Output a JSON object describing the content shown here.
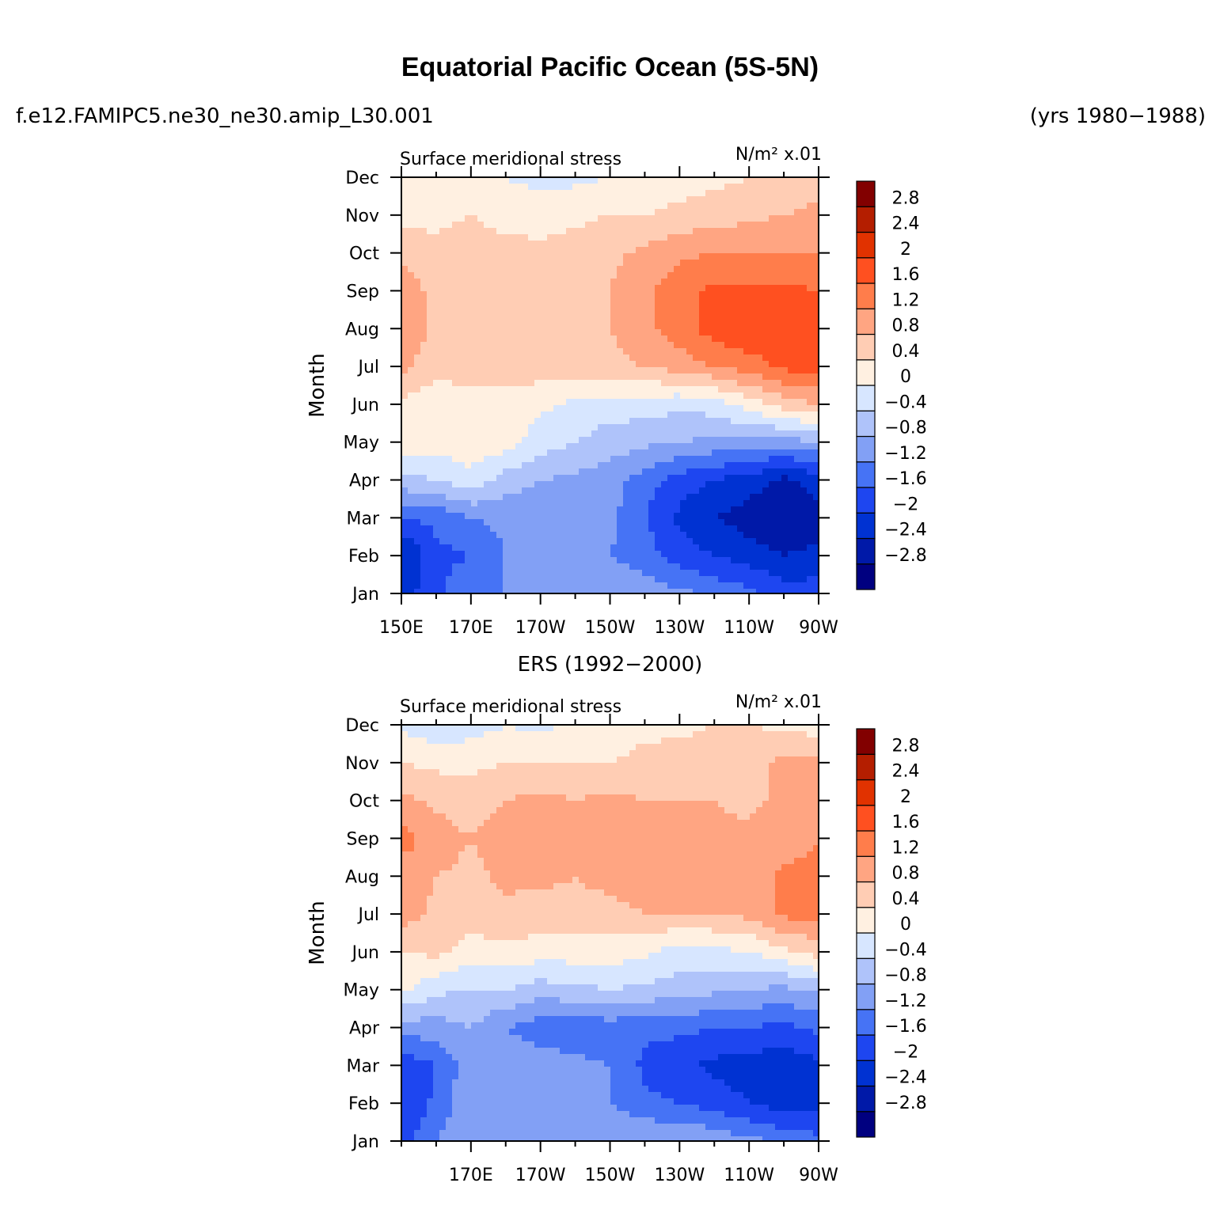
{
  "header": {
    "title": "Equatorial Pacific Ocean (5S-5N)",
    "case_name": "f.e12.FAMIPC5.ne30_ne30.amip_L30.001",
    "years": "(yrs 1980−1988)"
  },
  "colors": {
    "scale": [
      "#000080",
      "#0019a8",
      "#0032d2",
      "#1e46f0",
      "#4673f5",
      "#82a0f5",
      "#afc3fa",
      "#d7e6ff",
      "#fff0e1",
      "#ffcdb4",
      "#ffa582",
      "#ff7d4b",
      "#ff5020",
      "#e13200",
      "#b41e00",
      "#820000"
    ]
  },
  "chart_data": [
    {
      "type": "heatmap",
      "panel_title": "",
      "left_string": "Surface meridional stress",
      "right_string": "N/m² x.01",
      "xlabel": "",
      "ylabel": "Month",
      "xlim": [
        150,
        270
      ],
      "x_ticks": [
        150,
        170,
        190,
        210,
        230,
        250,
        270
      ],
      "x_tick_labels": [
        "150E",
        "170E",
        "170W",
        "150W",
        "130W",
        "110W",
        "90W"
      ],
      "y_tick_labels": [
        "Jan",
        "Feb",
        "Mar",
        "Apr",
        "May",
        "Jun",
        "Jul",
        "Aug",
        "Sep",
        "Oct",
        "Nov",
        "Dec"
      ],
      "levels": [
        -2.8,
        -2.4,
        -2,
        -1.6,
        -1.2,
        -0.8,
        -0.4,
        0,
        0.4,
        0.8,
        1.2,
        1.6,
        2,
        2.4,
        2.8
      ],
      "level_labels": [
        "−2.8",
        "−2.4",
        "−2",
        "−1.6",
        "−1.2",
        "−0.8",
        "−0.4",
        "0",
        "0.4",
        "0.8",
        "1.2",
        "1.6",
        "2",
        "2.4",
        "2.8"
      ],
      "z": [
        [
          -2.2,
          -1.7,
          -1.3,
          -1.2,
          -1.0,
          -0.9,
          -0.9,
          -1.0,
          -1.1,
          -1.3,
          -1.5,
          -1.8,
          -1.8
        ],
        [
          -2.5,
          -1.7,
          -1.6,
          -1.2,
          -1.1,
          -1.1,
          -1.2,
          -1.4,
          -1.8,
          -2.0,
          -2.2,
          -2.4,
          -2.3
        ],
        [
          -1.6,
          -1.5,
          -1.2,
          -1.1,
          -1.0,
          -1.0,
          -1.1,
          -1.6,
          -2.1,
          -2.4,
          -2.6,
          -2.8,
          -2.6
        ],
        [
          -0.5,
          -0.4,
          -0.1,
          -0.6,
          -0.8,
          -0.9,
          -1.0,
          -1.4,
          -1.8,
          -2.0,
          -2.2,
          -2.5,
          -2.2
        ],
        [
          0.2,
          0.2,
          0.2,
          0.2,
          -0.2,
          -0.4,
          -0.6,
          -0.7,
          -0.8,
          -0.9,
          -0.9,
          -1.0,
          -0.8
        ],
        [
          0.3,
          0.1,
          0.2,
          0.2,
          0.1,
          -0.1,
          -0.2,
          -0.2,
          -0.3,
          -0.2,
          0.2,
          0.6,
          0.8
        ],
        [
          0.9,
          0.6,
          0.6,
          0.7,
          0.6,
          0.6,
          0.7,
          0.8,
          1.0,
          1.2,
          1.4,
          1.7,
          1.8
        ],
        [
          1.1,
          0.7,
          0.7,
          0.7,
          0.7,
          0.7,
          0.8,
          1.1,
          1.4,
          1.8,
          2.0,
          1.9,
          1.8
        ],
        [
          1.0,
          0.7,
          0.7,
          0.6,
          0.6,
          0.7,
          0.8,
          1.1,
          1.5,
          1.7,
          1.7,
          1.7,
          1.6
        ],
        [
          0.7,
          0.5,
          0.6,
          0.6,
          0.5,
          0.6,
          0.7,
          0.9,
          1.1,
          1.2,
          1.2,
          1.2,
          1.2
        ],
        [
          0.3,
          0.3,
          0.4,
          0.2,
          0.2,
          0.3,
          0.4,
          0.4,
          0.5,
          0.6,
          0.7,
          0.8,
          0.9
        ],
        [
          0.0,
          0.1,
          0.0,
          0.0,
          -0.1,
          -0.1,
          0.0,
          0.1,
          0.2,
          0.3,
          0.4,
          0.5,
          0.6
        ]
      ]
    },
    {
      "type": "heatmap",
      "panel_title": "ERS (1992−2000)",
      "left_string": "Surface meridional stress",
      "right_string": "N/m² x.01",
      "xlabel": "",
      "ylabel": "Month",
      "xlim": [
        150,
        270
      ],
      "x_ticks": [
        170,
        190,
        210,
        230,
        250,
        270
      ],
      "x_tick_labels": [
        "170E",
        "170W",
        "150W",
        "130W",
        "110W",
        "90W"
      ],
      "y_tick_labels": [
        "Jan",
        "Feb",
        "Mar",
        "Apr",
        "May",
        "Jun",
        "Jul",
        "Aug",
        "Sep",
        "Oct",
        "Nov",
        "Dec"
      ],
      "levels": [
        -2.8,
        -2.4,
        -2,
        -1.6,
        -1.2,
        -0.8,
        -0.4,
        0,
        0.4,
        0.8,
        1.2,
        1.6,
        2,
        2.4,
        2.8
      ],
      "level_labels": [
        "−2.8",
        "−2.4",
        "−2",
        "−1.6",
        "−1.2",
        "−0.8",
        "−0.4",
        "0",
        "0.4",
        "0.8",
        "1.2",
        "1.6",
        "2",
        "2.4",
        "2.8"
      ],
      "z": [
        [
          -1.8,
          -1.2,
          -0.9,
          -1.0,
          -1.0,
          -0.8,
          -0.8,
          -0.8,
          -0.8,
          -0.9,
          -1.1,
          -1.3,
          -1.5
        ],
        [
          -2.0,
          -1.5,
          -0.9,
          -1.2,
          -1.1,
          -1.1,
          -1.2,
          -1.5,
          -1.6,
          -1.8,
          -2.0,
          -2.2,
          -2.1
        ],
        [
          -1.9,
          -1.6,
          -0.9,
          -1.0,
          -1.0,
          -1.1,
          -1.2,
          -1.7,
          -1.9,
          -2.1,
          -2.2,
          -2.3,
          -2.1
        ],
        [
          -1.0,
          -1.0,
          -0.8,
          -1.2,
          -1.4,
          -1.5,
          -1.4,
          -1.5,
          -1.5,
          -1.6,
          -1.6,
          -1.7,
          -1.5
        ],
        [
          0.1,
          -0.3,
          -0.4,
          -0.4,
          -0.6,
          -0.5,
          -0.4,
          -0.5,
          -0.6,
          -0.7,
          -0.8,
          -0.9,
          -0.7
        ],
        [
          0.4,
          0.5,
          0.2,
          0.3,
          0.2,
          0.2,
          0.2,
          0.1,
          -0.2,
          -0.1,
          0.0,
          0.3,
          0.6
        ],
        [
          1.0,
          0.7,
          0.6,
          0.7,
          0.6,
          0.7,
          0.7,
          0.8,
          0.8,
          0.8,
          0.9,
          1.3,
          1.3
        ],
        [
          1.0,
          0.8,
          0.7,
          0.9,
          0.9,
          0.8,
          0.9,
          1.0,
          0.9,
          0.8,
          0.8,
          1.3,
          1.3
        ],
        [
          1.4,
          1.0,
          0.8,
          1.0,
          1.0,
          1.0,
          0.9,
          1.0,
          1.0,
          0.9,
          0.9,
          1.0,
          1.2
        ],
        [
          0.9,
          0.7,
          0.6,
          0.8,
          0.9,
          0.8,
          0.9,
          0.8,
          0.8,
          0.8,
          0.7,
          0.9,
          1.2
        ],
        [
          0.4,
          0.3,
          0.3,
          0.4,
          0.4,
          0.4,
          0.4,
          0.5,
          0.6,
          0.6,
          0.7,
          0.9,
          0.9
        ],
        [
          -0.1,
          -0.3,
          -0.2,
          0.0,
          -0.1,
          0.1,
          0.2,
          0.3,
          0.3,
          0.4,
          0.4,
          0.3,
          0.2
        ]
      ]
    }
  ]
}
